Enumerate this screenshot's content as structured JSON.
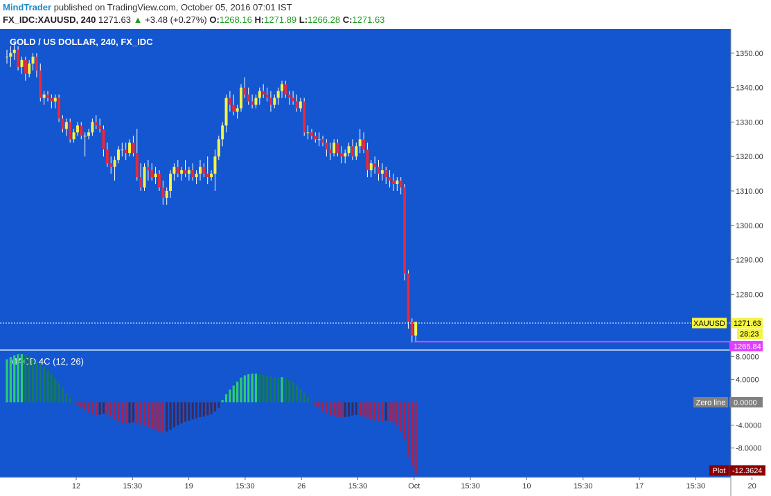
{
  "header": {
    "author": "MindTrader",
    "published_text": "published on TradingView.com, October 05, 2016 07:01 IST",
    "symbol": "FX_IDC:XAUUSD, 240",
    "last": "1271.63",
    "change": "+3.48 (+0.27%)",
    "o_label": "O:",
    "o_value": "1268.16",
    "h_label": "H:",
    "h_value": "1271.89",
    "l_label": "L:",
    "l_value": "1266.28",
    "c_label": "C:",
    "c_value": "1271.63"
  },
  "colors": {
    "background": "#1356cf",
    "up_candle": "#f4f442",
    "down_candle": "#e8283b",
    "hist_pos_strong": "#2ecc71",
    "hist_pos_weak": "#137a5c",
    "hist_neg_strong": "#a62350",
    "hist_neg_weak": "#3a2a5e",
    "axis_bg": "#ffffff"
  },
  "chart_data": [
    {
      "type": "candlestick",
      "title": "GOLD / US DOLLAR, 240, FX_IDC",
      "y_ticks": [
        "1350.00",
        "1340.00",
        "1330.00",
        "1320.00",
        "1310.00",
        "1300.00",
        "1290.00",
        "1280.00"
      ],
      "ylim": [
        1264,
        1357
      ],
      "x_ticks": [
        "12",
        "15:30",
        "19",
        "15:30",
        "26",
        "15:30",
        "Oct",
        "15:30",
        "10",
        "15:30",
        "17",
        "15:30",
        "20"
      ],
      "price_label_symbol": "XAUUSD",
      "price_label_value": "1271.63",
      "countdown": "28:23",
      "level_value": "1265.84",
      "candles": [
        [
          1349,
          1351,
          1347,
          1349
        ],
        [
          1349,
          1352,
          1346,
          1350
        ],
        [
          1350,
          1353,
          1348,
          1351
        ],
        [
          1351,
          1352,
          1345,
          1346
        ],
        [
          1346,
          1349,
          1344,
          1348
        ],
        [
          1348,
          1349,
          1342,
          1344
        ],
        [
          1344,
          1348,
          1343,
          1347
        ],
        [
          1347,
          1350,
          1345,
          1349
        ],
        [
          1349,
          1350,
          1343,
          1345
        ],
        [
          1345,
          1347,
          1336,
          1337
        ],
        [
          1337,
          1339,
          1335,
          1338
        ],
        [
          1338,
          1339,
          1336,
          1337
        ],
        [
          1337,
          1338,
          1334,
          1336
        ],
        [
          1336,
          1338,
          1334,
          1337
        ],
        [
          1337,
          1338,
          1330,
          1331
        ],
        [
          1331,
          1332,
          1327,
          1328
        ],
        [
          1328,
          1331,
          1326,
          1330
        ],
        [
          1330,
          1331,
          1324,
          1325
        ],
        [
          1325,
          1328,
          1324,
          1327
        ],
        [
          1327,
          1330,
          1326,
          1329
        ],
        [
          1329,
          1330,
          1325,
          1326
        ],
        [
          1326,
          1327,
          1320,
          1326
        ],
        [
          1326,
          1328,
          1325,
          1327
        ],
        [
          1327,
          1331,
          1326,
          1330
        ],
        [
          1330,
          1332,
          1328,
          1329
        ],
        [
          1329,
          1331,
          1327,
          1328
        ],
        [
          1328,
          1329,
          1320,
          1322
        ],
        [
          1322,
          1324,
          1317,
          1318
        ],
        [
          1318,
          1320,
          1315,
          1317
        ],
        [
          1317,
          1320,
          1313,
          1319
        ],
        [
          1319,
          1323,
          1318,
          1322
        ],
        [
          1322,
          1324,
          1320,
          1322
        ],
        [
          1322,
          1324,
          1319,
          1321
        ],
        [
          1321,
          1325,
          1320,
          1324
        ],
        [
          1324,
          1326,
          1320,
          1321
        ],
        [
          1321,
          1328,
          1313,
          1314
        ],
        [
          1314,
          1318,
          1310,
          1311
        ],
        [
          1311,
          1318,
          1310,
          1317
        ],
        [
          1317,
          1319,
          1313,
          1316
        ],
        [
          1316,
          1318,
          1313,
          1314
        ],
        [
          1314,
          1317,
          1312,
          1315
        ],
        [
          1315,
          1316,
          1310,
          1311
        ],
        [
          1311,
          1313,
          1306,
          1308
        ],
        [
          1308,
          1311,
          1306,
          1310
        ],
        [
          1310,
          1316,
          1308,
          1315
        ],
        [
          1315,
          1318,
          1313,
          1317
        ],
        [
          1317,
          1319,
          1314,
          1315
        ],
        [
          1315,
          1317,
          1313,
          1316
        ],
        [
          1316,
          1319,
          1314,
          1315
        ],
        [
          1315,
          1317,
          1313,
          1316
        ],
        [
          1316,
          1318,
          1313,
          1314
        ],
        [
          1314,
          1316,
          1312,
          1315
        ],
        [
          1315,
          1319,
          1313,
          1317
        ],
        [
          1317,
          1318,
          1314,
          1315
        ],
        [
          1315,
          1320,
          1312,
          1314
        ],
        [
          1314,
          1316,
          1313,
          1315
        ],
        [
          1315,
          1322,
          1310,
          1320
        ],
        [
          1320,
          1326,
          1319,
          1325
        ],
        [
          1325,
          1330,
          1323,
          1329
        ],
        [
          1329,
          1338,
          1327,
          1337
        ],
        [
          1337,
          1339,
          1333,
          1335
        ],
        [
          1335,
          1338,
          1332,
          1333
        ],
        [
          1333,
          1335,
          1331,
          1334
        ],
        [
          1334,
          1341,
          1333,
          1340
        ],
        [
          1340,
          1343,
          1337,
          1338
        ],
        [
          1338,
          1340,
          1335,
          1336
        ],
        [
          1336,
          1338,
          1334,
          1335
        ],
        [
          1335,
          1338,
          1334,
          1337
        ],
        [
          1337,
          1340,
          1335,
          1339
        ],
        [
          1339,
          1341,
          1337,
          1338
        ],
        [
          1338,
          1340,
          1336,
          1337
        ],
        [
          1337,
          1339,
          1333,
          1335
        ],
        [
          1335,
          1338,
          1334,
          1337
        ],
        [
          1337,
          1340,
          1335,
          1339
        ],
        [
          1339,
          1342,
          1337,
          1341
        ],
        [
          1341,
          1342,
          1337,
          1338
        ],
        [
          1338,
          1339,
          1335,
          1337
        ],
        [
          1337,
          1339,
          1335,
          1336
        ],
        [
          1336,
          1338,
          1333,
          1334
        ],
        [
          1334,
          1337,
          1333,
          1336
        ],
        [
          1336,
          1337,
          1326,
          1327
        ],
        [
          1327,
          1329,
          1325,
          1327
        ],
        [
          1327,
          1328,
          1325,
          1326
        ],
        [
          1326,
          1327,
          1324,
          1325
        ],
        [
          1325,
          1327,
          1323,
          1325
        ],
        [
          1325,
          1326,
          1323,
          1324
        ],
        [
          1324,
          1325,
          1320,
          1322
        ],
        [
          1322,
          1324,
          1319,
          1321
        ],
        [
          1321,
          1325,
          1320,
          1324
        ],
        [
          1324,
          1325,
          1320,
          1321
        ],
        [
          1321,
          1323,
          1318,
          1320
        ],
        [
          1320,
          1322,
          1318,
          1321
        ],
        [
          1321,
          1324,
          1320,
          1323
        ],
        [
          1323,
          1325,
          1319,
          1320
        ],
        [
          1320,
          1324,
          1319,
          1323
        ],
        [
          1323,
          1328,
          1321,
          1325
        ],
        [
          1325,
          1327,
          1321,
          1322
        ],
        [
          1322,
          1324,
          1314,
          1316
        ],
        [
          1316,
          1319,
          1314,
          1318
        ],
        [
          1318,
          1320,
          1315,
          1317
        ],
        [
          1317,
          1319,
          1313,
          1315
        ],
        [
          1315,
          1318,
          1313,
          1316
        ],
        [
          1316,
          1317,
          1312,
          1314
        ],
        [
          1314,
          1316,
          1311,
          1313
        ],
        [
          1313,
          1315,
          1310,
          1312
        ],
        [
          1312,
          1314,
          1310,
          1313
        ],
        [
          1313,
          1314,
          1309,
          1311
        ],
        [
          1311,
          1312,
          1284,
          1286
        ],
        [
          1286,
          1287,
          1270,
          1272
        ],
        [
          1272,
          1273,
          1266,
          1268
        ],
        [
          1268,
          1272,
          1266,
          1272
        ]
      ]
    },
    {
      "type": "bar",
      "title": "MACD 4C (12, 26)",
      "y_ticks": [
        "8.0000",
        "4.0000",
        "-4.0000",
        "-8.0000"
      ],
      "ylim": [
        -13,
        9
      ],
      "zero_label_name": "Zero line",
      "zero_label_value": "0.0000",
      "plot_label_name": "Plot",
      "plot_label_value": "-12.3624",
      "values": [
        7.5,
        7.9,
        8.2,
        8.4,
        8.4,
        8.3,
        8.0,
        7.6,
        7.2,
        6.7,
        6.2,
        5.6,
        4.9,
        4.2,
        3.4,
        2.5,
        1.6,
        0.8,
        0.1,
        -0.5,
        -1.0,
        -1.4,
        -1.8,
        -2.1,
        -2.3,
        -2.2,
        -2.0,
        -2.1,
        -2.5,
        -3.0,
        -3.4,
        -3.7,
        -3.8,
        -3.6,
        -3.5,
        -3.6,
        -3.9,
        -4.2,
        -4.4,
        -4.6,
        -4.9,
        -5.1,
        -5.3,
        -5.1,
        -4.8,
        -4.4,
        -4.0,
        -3.7,
        -3.4,
        -3.2,
        -3.0,
        -2.8,
        -2.6,
        -2.5,
        -2.3,
        -2.1,
        -1.6,
        -1.0,
        0.4,
        1.4,
        2.2,
        2.9,
        3.6,
        4.3,
        4.7,
        4.9,
        5.0,
        5.0,
        4.9,
        4.8,
        4.6,
        4.5,
        4.4,
        4.3,
        4.4,
        4.2,
        3.9,
        3.5,
        3.0,
        2.4,
        1.6,
        0.8,
        0.0,
        -0.5,
        -1.0,
        -1.5,
        -1.9,
        -2.2,
        -2.4,
        -2.6,
        -2.7,
        -2.6,
        -2.5,
        -2.3,
        -2.2,
        -2.3,
        -2.5,
        -2.8,
        -3.0,
        -3.2,
        -3.3,
        -3.3,
        -3.2,
        -3.3,
        -3.5,
        -4.0,
        -5.0,
        -6.5,
        -9.5,
        -11.0,
        -12.4
      ]
    }
  ]
}
